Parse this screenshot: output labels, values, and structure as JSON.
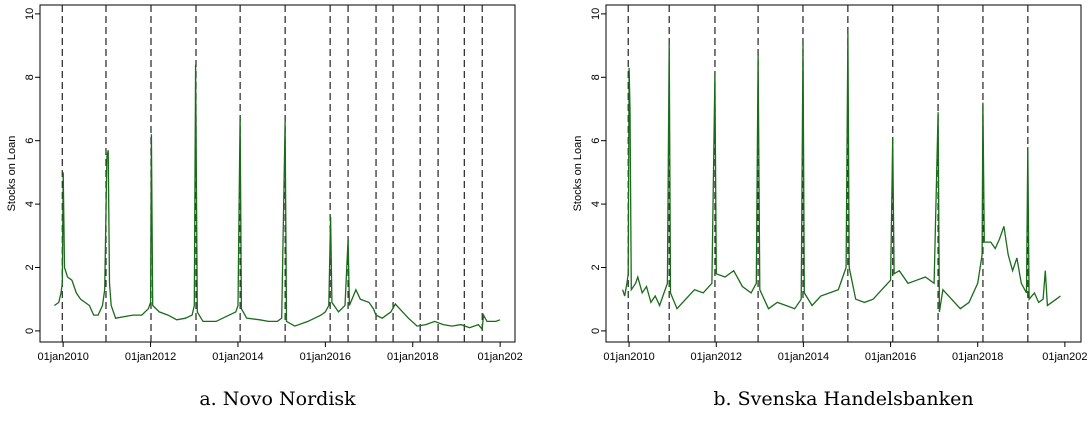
{
  "chart_data": [
    {
      "type": "line",
      "caption": "a. Novo Nordisk",
      "ylabel": "Stocks on Loan",
      "xlim": [
        2009.47,
        2020.34
      ],
      "ylim": [
        -0.35,
        10.28
      ],
      "xticks": [
        {
          "value": 2010,
          "label": "01jan2010"
        },
        {
          "value": 2012,
          "label": "01jan2012"
        },
        {
          "value": 2014,
          "label": "01jan2014"
        },
        {
          "value": 2016,
          "label": "01jan2016"
        },
        {
          "value": 2018,
          "label": "01jan2018"
        },
        {
          "value": 2020,
          "label": "01jan202"
        }
      ],
      "yticks": [
        0,
        2,
        4,
        6,
        8,
        10
      ],
      "events": [
        2009.98,
        2010.98,
        2012.01,
        2013.04,
        2014.05,
        2015.08,
        2016.11,
        2016.52,
        2017.16,
        2017.55,
        2018.17,
        2018.58,
        2019.18,
        2019.59
      ],
      "series": [
        {
          "color": "#1a6b1a",
          "x": [
            2009.8,
            2009.9,
            2009.95,
            2009.98,
            2010.0,
            2010.03,
            2010.1,
            2010.2,
            2010.3,
            2010.4,
            2010.5,
            2010.6,
            2010.7,
            2010.8,
            2010.9,
            2010.95,
            2011.0,
            2011.03,
            2011.06,
            2011.1,
            2011.2,
            2011.4,
            2011.6,
            2011.8,
            2011.95,
            2012.0,
            2012.02,
            2012.05,
            2012.2,
            2012.4,
            2012.6,
            2012.8,
            2012.95,
            2013.0,
            2013.03,
            2013.07,
            2013.2,
            2013.5,
            2013.8,
            2013.95,
            2014.0,
            2014.05,
            2014.08,
            2014.2,
            2014.5,
            2014.7,
            2014.9,
            2015.0,
            2015.08,
            2015.11,
            2015.3,
            2015.6,
            2015.9,
            2016.0,
            2016.08,
            2016.12,
            2016.15,
            2016.3,
            2016.45,
            2016.52,
            2016.55,
            2016.7,
            2016.8,
            2017.0,
            2017.1,
            2017.16,
            2017.3,
            2017.5,
            2017.6,
            2017.7,
            2017.9,
            2018.1,
            2018.3,
            2018.5,
            2018.7,
            2018.9,
            2019.1,
            2019.3,
            2019.5,
            2019.59,
            2019.62,
            2019.7,
            2019.9,
            2020.0
          ],
          "values": [
            0.8,
            0.9,
            1.2,
            1.5,
            5.0,
            2.0,
            1.7,
            1.6,
            1.2,
            1.0,
            0.9,
            0.8,
            0.5,
            0.5,
            0.8,
            1.3,
            5.5,
            5.7,
            1.5,
            0.8,
            0.4,
            0.45,
            0.5,
            0.5,
            0.7,
            0.9,
            6.2,
            0.8,
            0.6,
            0.5,
            0.35,
            0.4,
            0.5,
            0.8,
            8.4,
            0.6,
            0.3,
            0.3,
            0.5,
            0.6,
            0.8,
            6.8,
            0.7,
            0.4,
            0.35,
            0.3,
            0.3,
            0.4,
            6.6,
            0.3,
            0.15,
            0.3,
            0.5,
            0.6,
            0.8,
            3.6,
            0.9,
            0.6,
            0.8,
            2.9,
            0.8,
            1.3,
            1.0,
            0.9,
            0.7,
            0.5,
            0.4,
            0.6,
            0.85,
            0.7,
            0.4,
            0.15,
            0.2,
            0.3,
            0.2,
            0.15,
            0.2,
            0.1,
            0.2,
            0.05,
            0.5,
            0.3,
            0.3,
            0.35
          ]
        }
      ]
    },
    {
      "type": "line",
      "caption": "b. Svenska Handelsbanken",
      "ylabel": "Stocks on Loan",
      "xlim": [
        2009.47,
        2020.37
      ],
      "ylim": [
        -0.35,
        10.28
      ],
      "xticks": [
        {
          "value": 2010,
          "label": "01jan2010"
        },
        {
          "value": 2012,
          "label": "01jan2012"
        },
        {
          "value": 2014,
          "label": "01jan2014"
        },
        {
          "value": 2016,
          "label": "01jan2016"
        },
        {
          "value": 2018,
          "label": "01jan2018"
        },
        {
          "value": 2020,
          "label": "01jan202"
        }
      ],
      "yticks": [
        0,
        2,
        4,
        6,
        8,
        10
      ],
      "events": [
        2009.98,
        2010.92,
        2011.97,
        2012.96,
        2013.99,
        2015.02,
        2016.05,
        2017.09,
        2018.12,
        2019.15
      ],
      "series": [
        {
          "color": "#1a6b1a",
          "x": [
            2009.85,
            2009.9,
            2009.95,
            2009.98,
            2010.0,
            2010.02,
            2010.05,
            2010.15,
            2010.2,
            2010.3,
            2010.4,
            2010.5,
            2010.6,
            2010.7,
            2010.8,
            2010.88,
            2010.92,
            2010.95,
            2011.1,
            2011.3,
            2011.5,
            2011.7,
            2011.9,
            2011.97,
            2012.0,
            2012.2,
            2012.4,
            2012.6,
            2012.8,
            2012.92,
            2012.96,
            2013.0,
            2013.2,
            2013.4,
            2013.6,
            2013.8,
            2013.95,
            2013.99,
            2014.02,
            2014.2,
            2014.4,
            2014.6,
            2014.8,
            2014.98,
            2015.02,
            2015.05,
            2015.2,
            2015.4,
            2015.6,
            2015.8,
            2016.0,
            2016.05,
            2016.08,
            2016.2,
            2016.4,
            2016.6,
            2016.8,
            2017.0,
            2017.09,
            2017.12,
            2017.2,
            2017.4,
            2017.6,
            2017.8,
            2018.0,
            2018.1,
            2018.12,
            2018.15,
            2018.3,
            2018.4,
            2018.5,
            2018.6,
            2018.7,
            2018.8,
            2018.9,
            2019.0,
            2019.12,
            2019.15,
            2019.18,
            2019.3,
            2019.4,
            2019.5,
            2019.55,
            2019.6,
            2019.8,
            2019.9
          ],
          "values": [
            1.3,
            1.1,
            1.5,
            1.8,
            8.3,
            7.0,
            1.3,
            1.5,
            1.7,
            1.2,
            1.4,
            0.9,
            1.1,
            0.8,
            1.2,
            1.5,
            9.1,
            1.2,
            0.7,
            1.0,
            1.3,
            1.2,
            1.5,
            8.1,
            1.8,
            1.7,
            1.9,
            1.4,
            1.2,
            1.5,
            8.7,
            1.3,
            0.7,
            0.9,
            0.8,
            0.7,
            1.0,
            9.1,
            1.2,
            0.8,
            1.1,
            1.2,
            1.3,
            2.0,
            9.4,
            2.0,
            1.0,
            0.9,
            1.0,
            1.3,
            1.6,
            6.1,
            1.8,
            1.9,
            1.5,
            1.6,
            1.7,
            1.5,
            6.9,
            0.6,
            1.3,
            1.0,
            0.7,
            0.9,
            1.5,
            2.4,
            7.2,
            2.8,
            2.8,
            2.6,
            2.9,
            3.3,
            2.4,
            1.9,
            2.3,
            1.5,
            1.2,
            5.8,
            1.0,
            1.2,
            0.9,
            1.0,
            1.9,
            0.8,
            1.0,
            1.1
          ]
        }
      ]
    }
  ]
}
